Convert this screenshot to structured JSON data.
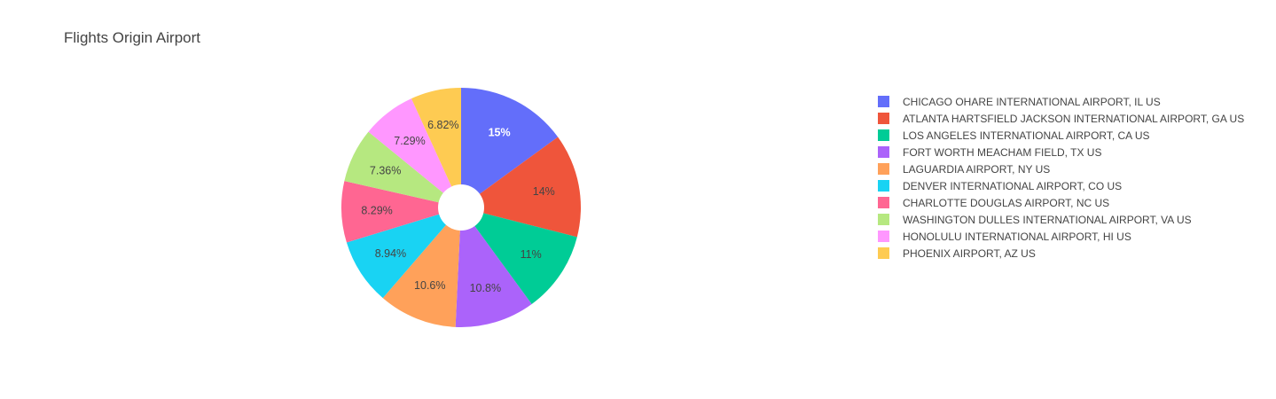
{
  "chart_data": {
    "type": "pie",
    "title": "Flights Origin Airport",
    "hole": true,
    "legend_position": "right",
    "slices": [
      {
        "label": "CHICAGO OHARE INTERNATIONAL AIRPORT, IL US",
        "value": 15,
        "text": "15%",
        "color": "#636efa",
        "text_color": "#ffffff",
        "bold": true
      },
      {
        "label": "ATLANTA HARTSFIELD JACKSON INTERNATIONAL AIRPORT, GA US",
        "value": 14,
        "text": "14%",
        "color": "#ef553b",
        "text_color": "#444444",
        "bold": false
      },
      {
        "label": "LOS ANGELES INTERNATIONAL AIRPORT, CA US",
        "value": 11,
        "text": "11%",
        "color": "#00cc96",
        "text_color": "#444444",
        "bold": false
      },
      {
        "label": "FORT WORTH MEACHAM FIELD, TX US",
        "value": 10.8,
        "text": "10.8%",
        "color": "#ab63fa",
        "text_color": "#444444",
        "bold": false
      },
      {
        "label": "LAGUARDIA AIRPORT, NY US",
        "value": 10.6,
        "text": "10.6%",
        "color": "#ffa15a",
        "text_color": "#444444",
        "bold": false
      },
      {
        "label": "DENVER INTERNATIONAL AIRPORT, CO US",
        "value": 8.94,
        "text": "8.94%",
        "color": "#19d3f3",
        "text_color": "#444444",
        "bold": false
      },
      {
        "label": "CHARLOTTE DOUGLAS AIRPORT, NC US",
        "value": 8.29,
        "text": "8.29%",
        "color": "#ff6692",
        "text_color": "#444444",
        "bold": false
      },
      {
        "label": "WASHINGTON DULLES INTERNATIONAL AIRPORT, VA US",
        "value": 7.36,
        "text": "7.36%",
        "color": "#b6e880",
        "text_color": "#444444",
        "bold": false
      },
      {
        "label": "HONOLULU INTERNATIONAL AIRPORT, HI US",
        "value": 7.29,
        "text": "7.29%",
        "color": "#ff97ff",
        "text_color": "#444444",
        "bold": false
      },
      {
        "label": "PHOENIX AIRPORT, AZ US",
        "value": 6.82,
        "text": "6.82%",
        "color": "#fecb52",
        "text_color": "#444444",
        "bold": false
      }
    ]
  }
}
